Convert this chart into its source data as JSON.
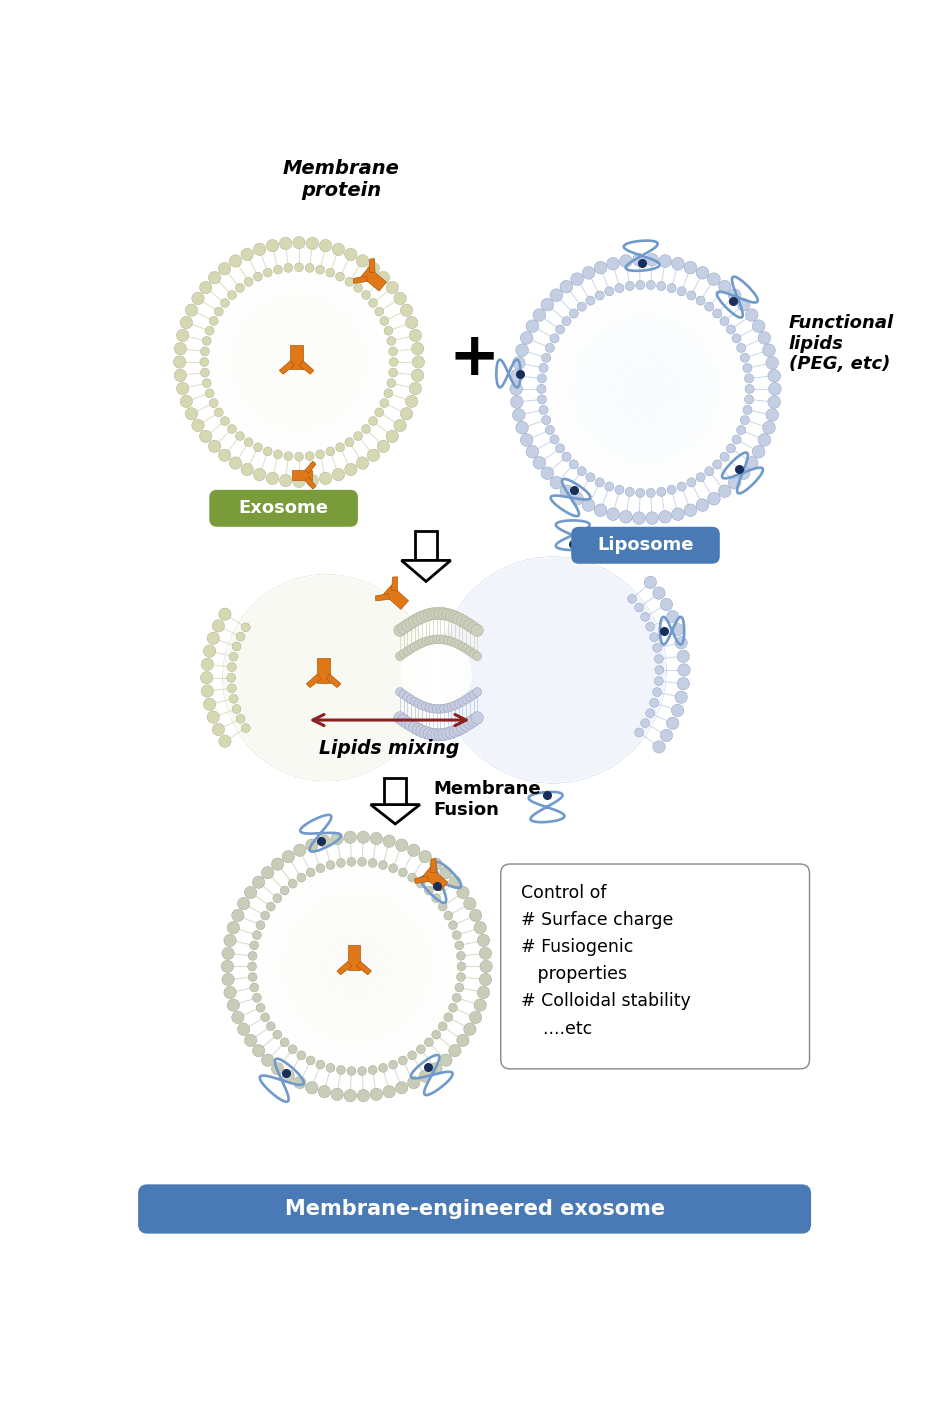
{
  "bg_color": "#ffffff",
  "exo_bead_color": "#d8dab8",
  "lipo_bead_color": "#c0cce0",
  "eng_bead_color": "#c8ccb8",
  "protein_color": "#e07818",
  "peg_color": "#7099cc",
  "peg_dot_color": "#1a2e5a",
  "arrow_color": "#000000",
  "double_arrow_color": "#8b2020",
  "label_exosome": "Exosome",
  "label_liposome": "Liposome",
  "label_engineered": "Membrane-engineered exosome",
  "label_membrane_protein": "Membrane\nprotein",
  "label_functional_lipids": "Functional\nlipids\n(PEG, etc)",
  "label_lipids_mixing": "Lipids mixing",
  "label_membrane_fusion": "Membrane\nFusion",
  "label_control": "Control of\n# Surface charge\n# Fusiogenic\n   properties\n# Colloidal stability\n    ....etc",
  "exosome_label_bg": "#7a9b3a",
  "liposome_label_bg": "#4a7ab5",
  "engineered_label_bg": "#4a7ab5"
}
